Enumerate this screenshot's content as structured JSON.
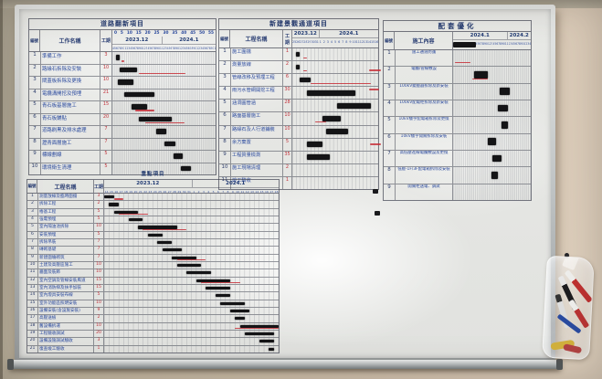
{
  "chart_data": [
    {
      "type": "bar",
      "variant": "gantt",
      "orientation": "horizontal",
      "title": "道路翻新項目",
      "columns": {
        "no": "編號",
        "name": "工作名稱",
        "dur": "工期"
      },
      "scale": [
        0,
        5,
        10,
        15,
        20,
        25,
        30,
        35,
        40,
        45,
        50,
        55
      ],
      "months": [
        {
          "label": "2023.12",
          "start": 4,
          "end": 31
        },
        {
          "label": "2024.1",
          "start": 1,
          "end": 31
        }
      ],
      "total_days": 59,
      "rows": [
        {
          "no": "1",
          "name": "準備工作",
          "dur": "3",
          "bar": [
            2,
            2
          ],
          "red": [
            5,
            2
          ]
        },
        {
          "no": "2",
          "name": "路緣石拆除及安裝",
          "dur": "10",
          "bar": [
            4,
            10
          ],
          "red": [
            15,
            27
          ]
        },
        {
          "no": "3",
          "name": "閘蓋板拆除及更換",
          "dur": "10",
          "bar": [
            3,
            9
          ]
        },
        {
          "no": "4",
          "name": "電纜溝開挖及預埋",
          "dur": "21",
          "bar": [
            7,
            17
          ]
        },
        {
          "no": "5",
          "name": "青石板基層施工",
          "dur": "15",
          "bar": [
            11,
            9
          ],
          "red": [
            13,
            11
          ]
        },
        {
          "no": "6",
          "name": "青石板鋪貼",
          "dur": "20",
          "bar": [
            15,
            19
          ],
          "red": [
            19,
            22
          ]
        },
        {
          "no": "7",
          "name": "道路刷黑及排水處理",
          "dur": "7",
          "bar": [
            25,
            6
          ]
        },
        {
          "no": "8",
          "name": "瀝青面層施工",
          "dur": "7",
          "bar": [
            30,
            6
          ]
        },
        {
          "no": "9",
          "name": "標線劃線",
          "dur": "5",
          "bar": [
            35,
            5
          ]
        },
        {
          "no": "10",
          "name": "環境衛生清理",
          "dur": "5",
          "bar": [
            39,
            6
          ]
        }
      ]
    },
    {
      "type": "bar",
      "variant": "gantt",
      "orientation": "horizontal",
      "title": "新建景觀通道項目",
      "columns": {
        "no": "編號",
        "name": "工程名稱",
        "dur": "工期"
      },
      "months": [
        {
          "label": "2023.12",
          "start": 25,
          "end": 31
        },
        {
          "label": "2024.1",
          "start": 1,
          "end": 16
        }
      ],
      "total_days": 23,
      "rows": [
        {
          "no": "1",
          "name": "施工圍擋",
          "dur": "1",
          "bar": [
            1,
            1
          ],
          "red": [
            3,
            1
          ]
        },
        {
          "no": "2",
          "name": "測量放線",
          "dur": "2",
          "bar": [
            1,
            1
          ],
          "red": [
            3,
            1
          ]
        },
        {
          "no": "3",
          "name": "管線改移及預埋工程",
          "dur": "6",
          "bar": [
            2,
            3
          ],
          "red": [
            5,
            16
          ]
        },
        {
          "no": "4",
          "name": "雨污水管網開挖工程",
          "dur": "30",
          "bar": [
            4,
            13
          ]
        },
        {
          "no": "5",
          "name": "涵洞圓管涵",
          "dur": "28",
          "bar": [
            12,
            9
          ]
        },
        {
          "no": "6",
          "name": "路面基層施工",
          "dur": "10",
          "bar": [
            8,
            5
          ],
          "red": [
            6,
            3
          ]
        },
        {
          "no": "7",
          "name": "路緣石及人行道鋪裝",
          "dur": "10",
          "bar": [
            9,
            6
          ]
        },
        {
          "no": "8",
          "name": "余方棄置",
          "dur": "5",
          "bar": [
            4,
            4
          ]
        },
        {
          "no": "9",
          "name": "工程質量檢測",
          "dur": "35",
          "bar": [
            4,
            6
          ]
        },
        {
          "no": "10",
          "name": "施工現場清理",
          "dur": "2"
        },
        {
          "no": "11",
          "name": "竣工驗收",
          "dur": "1"
        }
      ]
    },
    {
      "type": "bar",
      "variant": "gantt",
      "orientation": "horizontal",
      "title": "配套優化",
      "columns": {
        "no": "編號",
        "name": "施工內容"
      },
      "months": [
        {
          "label": "2024.1",
          "start": 1,
          "end": 31
        },
        {
          "label": "2024.2",
          "start": 1,
          "end": 14
        }
      ],
      "total_days": 45,
      "header_bar": [
        0,
        13
      ],
      "rows": [
        {
          "no": "1",
          "name": "施工通道防護",
          "red": [
            1,
            9
          ]
        },
        {
          "no": "2",
          "name": "電纜/管線敷設",
          "bar": [
            12,
            8
          ],
          "red": [
            11,
            9
          ]
        },
        {
          "no": "3",
          "name": "100kV變壓器拆除及新安裝",
          "bar": [
            27,
            6
          ]
        },
        {
          "no": "4",
          "name": "100kV配電柜拆除及新安裝",
          "bar": [
            26,
            6
          ]
        },
        {
          "no": "5",
          "name": "10kV樓宇配電箱拆除及更換",
          "bar": [
            28,
            4
          ]
        },
        {
          "no": "6",
          "name": "10kV樓宇開關拆除及安裝",
          "bar": [
            20,
            5
          ]
        },
        {
          "no": "7",
          "name": "高低壓進線電纜敷設及更換",
          "bar": [
            23,
            5
          ]
        },
        {
          "no": "8",
          "name": "低壓-1F/3F配電箱拆除及安裝",
          "bar": [
            22,
            4
          ]
        },
        {
          "no": "9",
          "name": "開關柜送電、調試"
        }
      ]
    },
    {
      "type": "bar",
      "variant": "gantt",
      "orientation": "horizontal",
      "title": "重點項目",
      "columns": {
        "no": "編號",
        "name": "工程名稱",
        "dur": "工期"
      },
      "months": [
        {
          "label": "2023.12",
          "start": 14,
          "end": 31
        },
        {
          "label": "2024.1",
          "start": 1,
          "end": 18
        }
      ],
      "total_days": 36,
      "rows": [
        {
          "no": "1",
          "name": "測量放線及臨時圍擋",
          "dur": "3",
          "bar": [
            0,
            2
          ],
          "red": [
            2,
            2
          ]
        },
        {
          "no": "2",
          "name": "拆除工程",
          "dur": "2",
          "bar": [
            1,
            2
          ]
        },
        {
          "no": "3",
          "name": "樁基工程",
          "dur": "5",
          "bar": [
            2,
            5
          ],
          "red": [
            3,
            6
          ]
        },
        {
          "no": "4",
          "name": "強電預埋",
          "dur": "5",
          "bar": [
            5,
            3
          ]
        },
        {
          "no": "5",
          "name": "室內隔油池拆除",
          "dur": "10",
          "bar": [
            7,
            8
          ],
          "red": [
            8,
            9
          ]
        },
        {
          "no": "6",
          "name": "安裝預埋",
          "dur": "5",
          "bar": [
            9,
            3
          ]
        },
        {
          "no": "7",
          "name": "拆除吊裝",
          "dur": "7",
          "bar": [
            11,
            3
          ]
        },
        {
          "no": "8",
          "name": "磚砌基礎",
          "dur": "7",
          "bar": [
            12,
            4
          ]
        },
        {
          "no": "9",
          "name": "新建圍墻砌筑",
          "dur": "7",
          "bar": [
            14,
            5
          ],
          "red": [
            15,
            6
          ]
        },
        {
          "no": "10",
          "name": "土建及高壓區施工",
          "dur": "10",
          "bar": [
            15,
            5
          ]
        },
        {
          "no": "11",
          "name": "牆面及裝飾",
          "dur": "10",
          "bar": [
            17,
            5
          ]
        },
        {
          "no": "12",
          "name": "室內空調及管線安裝風道",
          "dur": "15",
          "bar": [
            19,
            7
          ],
          "red": [
            20,
            8
          ]
        },
        {
          "no": "13",
          "name": "室內消防梯及扶手加裝",
          "dur": "15",
          "bar": [
            21,
            5
          ]
        },
        {
          "no": "14",
          "name": "室內燈具安裝布線",
          "dur": "5",
          "bar": [
            23,
            3
          ]
        },
        {
          "no": "15",
          "name": "室外功能區照明安裝",
          "dur": "10",
          "bar": [
            24,
            5
          ]
        },
        {
          "no": "16",
          "name": "設備安裝(含設施安裝)",
          "dur": "9",
          "bar": [
            26,
            4
          ]
        },
        {
          "no": "17",
          "name": "高壓送檢",
          "dur": "2",
          "bar": [
            27,
            2
          ]
        },
        {
          "no": "18",
          "name": "舊設備拆運",
          "dur": "10",
          "bar": [
            28,
            8
          ],
          "red": [
            27,
            9
          ]
        },
        {
          "no": "19",
          "name": "工程驗收調試",
          "dur": "20",
          "bar": [
            29,
            6
          ]
        },
        {
          "no": "20",
          "name": "設備設施調試驗收",
          "dur": "3",
          "bar": [
            32,
            3
          ]
        },
        {
          "no": "21",
          "name": "復查竣工驗收",
          "dur": "1",
          "bar": [
            34,
            1
          ]
        }
      ]
    }
  ],
  "colors": {
    "handwriting_blue": "#2b4a9e",
    "duration_red": "#c2333c",
    "bar_black": "#141416",
    "progress_red": "#c62832",
    "board_surface": "#e6e7e4",
    "frame_silver": "#bcc0c1",
    "wall_beige": "#d3c5b0"
  }
}
